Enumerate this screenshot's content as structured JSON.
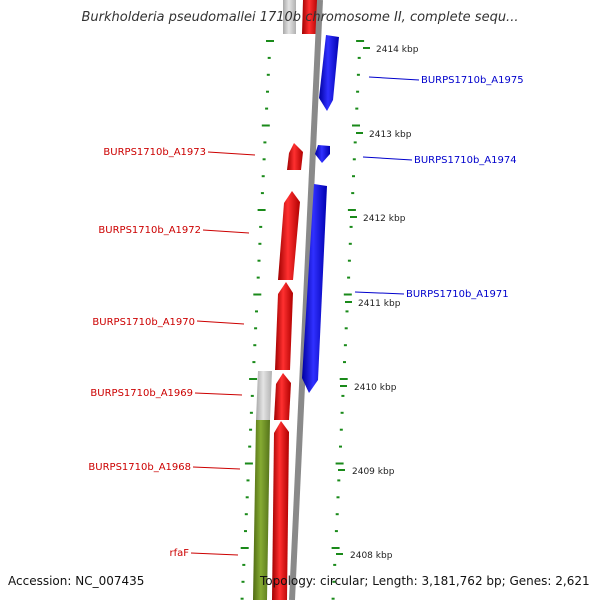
{
  "title": "Burkholderia pseudomallei 1710b chromosome II, complete sequ...",
  "footer": {
    "accession": "Accession: NC_007435",
    "topology": "Topology: circular; Length: 3,181,762 bp; Genes: 2,621"
  },
  "ticks": [
    {
      "label": "2414 kbp",
      "pos_kbp": 2414
    },
    {
      "label": "2413 kbp",
      "pos_kbp": 2413
    },
    {
      "label": "2412 kbp",
      "pos_kbp": 2412
    },
    {
      "label": "2411 kbp",
      "pos_kbp": 2411
    },
    {
      "label": "2410 kbp",
      "pos_kbp": 2410
    },
    {
      "label": "2409 kbp",
      "pos_kbp": 2409
    },
    {
      "label": "2408 kbp",
      "pos_kbp": 2408
    }
  ],
  "genes": [
    {
      "name": "BURPS1710b_A1975",
      "strand": "reverse",
      "color": "#0000ee"
    },
    {
      "name": "BURPS1710b_A1974",
      "strand": "reverse",
      "color": "#0000ee"
    },
    {
      "name": "BURPS1710b_A1973",
      "strand": "forward",
      "color": "#ee0000"
    },
    {
      "name": "BURPS1710b_A1972",
      "strand": "forward",
      "color": "#ee0000"
    },
    {
      "name": "BURPS1710b_A1971",
      "strand": "reverse",
      "color": "#0000ee"
    },
    {
      "name": "BURPS1710b_A1970",
      "strand": "forward",
      "color": "#ee0000"
    },
    {
      "name": "BURPS1710b_A1969",
      "strand": "forward",
      "color": "#ee0000"
    },
    {
      "name": "BURPS1710b_A1968",
      "strand": "forward",
      "color": "#ee0000"
    },
    {
      "name": "rfaF",
      "strand": "forward",
      "color": "#ee0000"
    }
  ],
  "colors": {
    "backbone": "#8a8a8a",
    "forward_cds": "#ee0000",
    "reverse_cds": "#0000ee",
    "feature_gray": "#c8c8c8",
    "feature_green": "#6b8e23",
    "tick_green": "#1a8a1a",
    "label_red": "#cc0000",
    "label_blue": "#0000cc"
  }
}
